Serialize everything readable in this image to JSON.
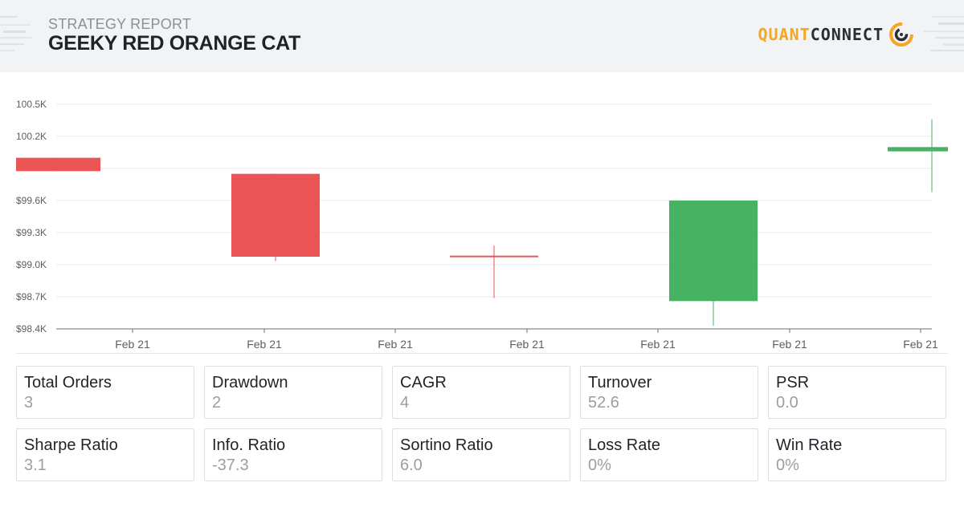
{
  "header": {
    "report_label": "STRATEGY REPORT",
    "strategy_name": "GEEKY RED ORANGE CAT",
    "logo_quant": "QUANT",
    "logo_connect": "CONNECT"
  },
  "colors": {
    "up": "#47b262",
    "down": "#eb5454",
    "grid": "#e6e8eb",
    "axis_text": "#5a5e64",
    "logo_orange": "#f5a623"
  },
  "chart_data": {
    "type": "candlestick",
    "ylim": [
      98400,
      100500
    ],
    "yticks": [
      {
        "value": 98400,
        "label": "$98.4K"
      },
      {
        "value": 98700,
        "label": "$98.7K"
      },
      {
        "value": 99000,
        "label": "$99.0K"
      },
      {
        "value": 99300,
        "label": "$99.3K"
      },
      {
        "value": 99600,
        "label": "$99.6K"
      },
      {
        "value": 99900,
        "label": ""
      },
      {
        "value": 100200,
        "label": "100.2K"
      },
      {
        "value": 100500,
        "label": "100.5K"
      }
    ],
    "xticks": [
      "Feb 21",
      "Feb 21",
      "Feb 21",
      "Feb 21",
      "Feb 21",
      "Feb 21",
      "Feb 21"
    ],
    "candles": [
      {
        "open": 100000,
        "close": 99875,
        "high": 100000,
        "low": 99875
      },
      {
        "open": 99850,
        "close": 99075,
        "high": 99850,
        "low": 99035
      },
      {
        "open": 99085,
        "close": 99080,
        "high": 99180,
        "low": 98690
      },
      {
        "open": 98660,
        "close": 99600,
        "high": 99600,
        "low": 98430
      },
      {
        "open": 100060,
        "close": 100100,
        "high": 100360,
        "low": 99680
      }
    ]
  },
  "stats": [
    {
      "label": "Total Orders",
      "value": "3"
    },
    {
      "label": "Drawdown",
      "value": "2"
    },
    {
      "label": "CAGR",
      "value": "4"
    },
    {
      "label": "Turnover",
      "value": "52.6"
    },
    {
      "label": "PSR",
      "value": "0.0"
    },
    {
      "label": "Sharpe Ratio",
      "value": "3.1"
    },
    {
      "label": "Info. Ratio",
      "value": "-37.3"
    },
    {
      "label": "Sortino Ratio",
      "value": "6.0"
    },
    {
      "label": "Loss Rate",
      "value": "0%"
    },
    {
      "label": "Win Rate",
      "value": "0%"
    }
  ]
}
